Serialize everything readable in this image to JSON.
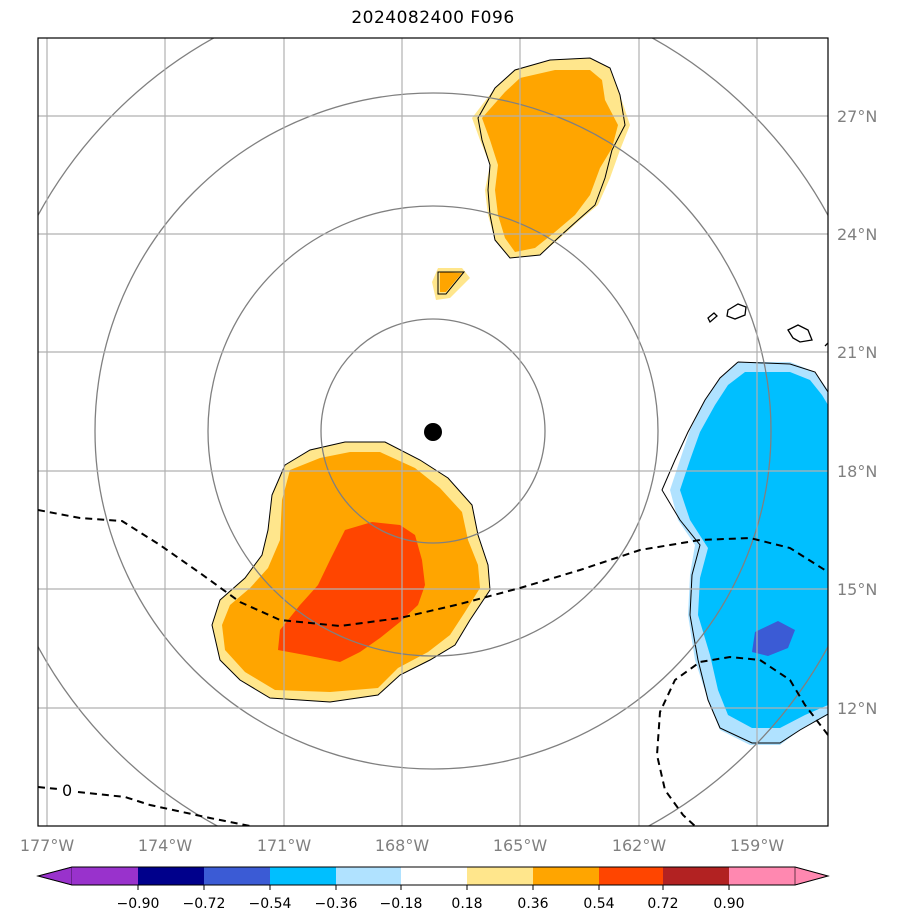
{
  "title": "2024082400 F096",
  "zero_contour_label": "0",
  "longitude_ticks": [
    "177°W",
    "174°W",
    "171°W",
    "168°W",
    "165°W",
    "162°W",
    "159°W"
  ],
  "latitude_ticks": [
    "27°N",
    "24°N",
    "21°N",
    "18°N",
    "15°N",
    "12°N"
  ],
  "colorbar": {
    "labels": [
      "−0.90",
      "−0.72",
      "−0.54",
      "−0.36",
      "−0.18",
      "0.18",
      "0.36",
      "0.54",
      "0.72",
      "0.90"
    ],
    "colors": [
      "#9932cc",
      "#00008b",
      "#3b5bd5",
      "#00bfff",
      "#b0e2ff",
      "#ffffff",
      "#ffe68c",
      "#ffa500",
      "#ff4500",
      "#b22222",
      "#ff88b0"
    ]
  },
  "colors": {
    "range_rings": "#808080",
    "gridlines": "#b0b0b0",
    "positive_light": "#ffe68c",
    "positive_mid": "#ffa500",
    "positive_strong": "#ff4500",
    "negative_light": "#b0e2ff",
    "negative_mid": "#00bfff",
    "negative_strong": "#3b5bd5",
    "storm_center": "#000000"
  }
}
